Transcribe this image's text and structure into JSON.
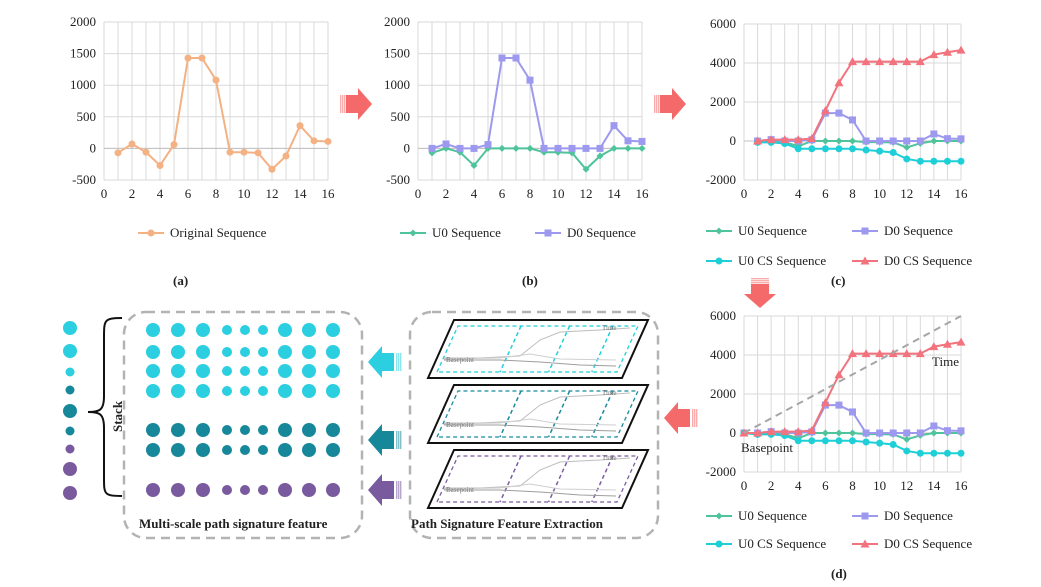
{
  "charts": [
    {
      "id": "a",
      "panel_label": "(a)",
      "yticks": [
        "2000",
        "1500",
        "1000",
        "500",
        "0",
        "-500"
      ],
      "xticks": [
        "0",
        "2",
        "4",
        "6",
        "8",
        "10",
        "12",
        "14",
        "16"
      ],
      "legend": [
        "Original Sequence"
      ]
    },
    {
      "id": "b",
      "panel_label": "(b)",
      "yticks": [
        "2000",
        "1500",
        "1000",
        "500",
        "0",
        "-500"
      ],
      "xticks": [
        "0",
        "2",
        "4",
        "6",
        "8",
        "10",
        "12",
        "14",
        "16"
      ],
      "legend": [
        "U0 Sequence",
        "D0 Sequence"
      ]
    },
    {
      "id": "c",
      "panel_label": "(c)",
      "yticks": [
        "6000",
        "4000",
        "2000",
        "0",
        "-2000"
      ],
      "xticks": [
        "0",
        "2",
        "4",
        "6",
        "8",
        "10",
        "12",
        "14",
        "16"
      ],
      "legend": [
        "U0 Sequence",
        "D0 Sequence",
        "U0 CS Sequence",
        "D0 CS Sequence"
      ]
    },
    {
      "id": "d",
      "panel_label": "(d)",
      "yticks": [
        "6000",
        "4000",
        "2000",
        "0",
        "-2000"
      ],
      "xticks": [
        "0",
        "2",
        "4",
        "6",
        "8",
        "10",
        "12",
        "14",
        "16"
      ],
      "legend": [
        "U0 Sequence",
        "D0 Sequence",
        "U0 CS Sequence",
        "D0 CS Sequence"
      ],
      "annotations": [
        "Time",
        "Basepoint"
      ]
    }
  ],
  "chart_data": [
    {
      "type": "line",
      "panel": "a",
      "x": [
        1,
        2,
        3,
        4,
        5,
        6,
        7,
        8,
        9,
        10,
        11,
        12,
        13,
        14,
        15,
        16
      ],
      "xlim": [
        0,
        16
      ],
      "ylim": [
        -500,
        2000
      ],
      "series": [
        {
          "name": "Original Sequence",
          "color": "#f4b183",
          "values": [
            -70,
            70,
            -60,
            -270,
            60,
            1430,
            1430,
            1080,
            -60,
            -60,
            -70,
            -330,
            -120,
            360,
            120,
            110
          ]
        }
      ]
    },
    {
      "type": "line",
      "panel": "b",
      "x": [
        1,
        2,
        3,
        4,
        5,
        6,
        7,
        8,
        9,
        10,
        11,
        12,
        13,
        14,
        15,
        16
      ],
      "xlim": [
        0,
        16
      ],
      "ylim": [
        -500,
        2000
      ],
      "series": [
        {
          "name": "U0 Sequence",
          "color": "#4fc39a",
          "values": [
            -70,
            0,
            -60,
            -270,
            0,
            0,
            0,
            0,
            -60,
            -60,
            -70,
            -330,
            -120,
            0,
            0,
            0
          ]
        },
        {
          "name": "D0 Sequence",
          "color": "#9c99ef",
          "values": [
            0,
            70,
            0,
            0,
            60,
            1430,
            1430,
            1080,
            0,
            0,
            0,
            0,
            0,
            360,
            120,
            110
          ]
        }
      ]
    },
    {
      "type": "line",
      "panel": "c",
      "x": [
        1,
        2,
        3,
        4,
        5,
        6,
        7,
        8,
        9,
        10,
        11,
        12,
        13,
        14,
        15,
        16
      ],
      "xlim": [
        0,
        16
      ],
      "ylim": [
        -2000,
        6000
      ],
      "series": [
        {
          "name": "U0 Sequence",
          "color": "#4fc39a",
          "values": [
            -70,
            0,
            -60,
            -270,
            0,
            0,
            0,
            0,
            -60,
            -60,
            -70,
            -330,
            -120,
            0,
            0,
            0
          ]
        },
        {
          "name": "D0 Sequence",
          "color": "#9c99ef",
          "values": [
            0,
            70,
            0,
            0,
            60,
            1430,
            1430,
            1080,
            0,
            0,
            0,
            0,
            0,
            360,
            120,
            110
          ]
        },
        {
          "name": "U0 CS Sequence",
          "color": "#1fcfd7",
          "values": [
            -70,
            -70,
            -130,
            -400,
            -400,
            -400,
            -400,
            -400,
            -460,
            -520,
            -590,
            -920,
            -1040,
            -1040,
            -1040,
            -1040
          ]
        },
        {
          "name": "D0 CS Sequence",
          "color": "#f2737d",
          "values": [
            0,
            70,
            70,
            70,
            130,
            1560,
            2990,
            4070,
            4070,
            4070,
            4070,
            4070,
            4070,
            4430,
            4550,
            4660
          ]
        }
      ]
    },
    {
      "type": "line",
      "panel": "d",
      "x": [
        0,
        1,
        2,
        3,
        4,
        5,
        6,
        7,
        8,
        9,
        10,
        11,
        12,
        13,
        14,
        15,
        16
      ],
      "xlim": [
        0,
        16
      ],
      "ylim": [
        -2000,
        6000
      ],
      "series": [
        {
          "name": "U0 Sequence",
          "color": "#4fc39a",
          "values": [
            0,
            -70,
            0,
            -60,
            -270,
            0,
            0,
            0,
            0,
            -60,
            -60,
            -70,
            -330,
            -120,
            0,
            0,
            0
          ]
        },
        {
          "name": "D0 Sequence",
          "color": "#9c99ef",
          "values": [
            0,
            0,
            70,
            0,
            0,
            60,
            1430,
            1430,
            1080,
            0,
            0,
            0,
            0,
            0,
            360,
            120,
            110
          ]
        },
        {
          "name": "U0 CS Sequence",
          "color": "#1fcfd7",
          "values": [
            0,
            -70,
            -70,
            -130,
            -400,
            -400,
            -400,
            -400,
            -400,
            -460,
            -520,
            -590,
            -920,
            -1040,
            -1040,
            -1040,
            -1040
          ]
        },
        {
          "name": "D0 CS Sequence",
          "color": "#f2737d",
          "values": [
            0,
            0,
            70,
            70,
            70,
            130,
            1560,
            2990,
            4070,
            4070,
            4070,
            4070,
            4070,
            4070,
            4430,
            4550,
            4660
          ]
        },
        {
          "name": "Time",
          "color": "#a6a6a6",
          "dashed": true,
          "x": [
            0,
            16
          ],
          "values": [
            0,
            6000
          ]
        }
      ]
    }
  ],
  "extraction": {
    "title": "Path Signature Feature Extraction",
    "layer_colors": [
      "#1fcfd7",
      "#178a9c",
      "#7a5c9e"
    ],
    "layer_text": [
      "Time",
      "Basepoint"
    ]
  },
  "features": {
    "title": "Multi-scale path signature feature",
    "stack_label": "Stack",
    "row_colors": [
      "#2bcfe0",
      "#2bcfe0",
      "#2bcfe0",
      "#2bcfe0",
      "#17889a",
      "#17889a",
      "#7a5a9e"
    ],
    "dot_levels": [
      3,
      3,
      3,
      2,
      2,
      2,
      3,
      3,
      3
    ],
    "column_levels": [
      3,
      3,
      2,
      2,
      3,
      2,
      2,
      3,
      3
    ],
    "column_colors": [
      "#2bcfe0",
      "#2bcfe0",
      "#2bcfe0",
      "#1d9cb4",
      "#17889a",
      "#17889a",
      "#17889a",
      "#7a5a9e",
      "#7a5a9e"
    ]
  },
  "arrow_colors": {
    "flow": "#f46a6a",
    "row1": "#2bcfe0",
    "row2": "#17889a",
    "row3": "#7a5a9e"
  }
}
